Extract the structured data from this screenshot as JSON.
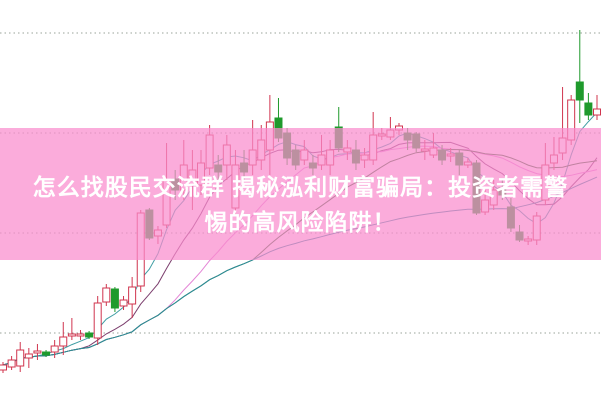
{
  "headline": {
    "line1": "怎么找股民交流群 揭秘泓利财富骗局：投资者需警",
    "line2": "惕的高风险陷阱！"
  },
  "chart_data": {
    "type": "candlestick",
    "title": "",
    "xlabel": "",
    "ylabel": "",
    "ylim": [
      0,
      40
    ],
    "grid": "horizontal dotted",
    "up_color": "#d0344e",
    "down_color": "#1f9a2c",
    "ma_colors": [
      "#3f9ea4",
      "#7c3f6e",
      "#e486d6",
      "#2f6a2f",
      "#2b8d9c"
    ],
    "ma_periods": [
      5,
      10,
      20,
      30,
      60
    ],
    "ohlc": [
      [
        3.0,
        3.8,
        2.7,
        3.5
      ],
      [
        3.3,
        4.4,
        3.0,
        4.0
      ],
      [
        3.4,
        5.8,
        2.8,
        5.0
      ],
      [
        4.2,
        5.2,
        3.2,
        4.6
      ],
      [
        4.7,
        5.6,
        4.0,
        4.9
      ],
      [
        4.8,
        5.0,
        4.3,
        4.5
      ],
      [
        4.8,
        6.0,
        4.2,
        5.4
      ],
      [
        5.4,
        7.8,
        4.5,
        6.3
      ],
      [
        6.4,
        8.2,
        6.0,
        6.6
      ],
      [
        6.4,
        7.0,
        6.0,
        6.6
      ],
      [
        6.7,
        6.9,
        6.1,
        6.3
      ],
      [
        6.2,
        10.4,
        5.5,
        9.7
      ],
      [
        9.8,
        11.6,
        9.4,
        11.2
      ],
      [
        11.1,
        11.3,
        8.8,
        9.2
      ],
      [
        9.4,
        10.4,
        9.0,
        10.0
      ],
      [
        9.6,
        12.3,
        8.2,
        11.3
      ],
      [
        11.4,
        19.0,
        10.8,
        18.7
      ],
      [
        19.0,
        19.2,
        16.0,
        16.2
      ],
      [
        16.4,
        17.4,
        15.6,
        17.0
      ],
      [
        17.5,
        25.7,
        17.2,
        22.0
      ],
      [
        22.1,
        23.0,
        20.0,
        21.0
      ],
      [
        21.0,
        26.0,
        20.0,
        23.5
      ],
      [
        21.5,
        25.0,
        19.0,
        23.0
      ],
      [
        21.5,
        25.0,
        20.5,
        23.7
      ],
      [
        23.2,
        27.5,
        22.5,
        26.5
      ],
      [
        23.5,
        24.5,
        22.0,
        22.8
      ],
      [
        23.5,
        26.5,
        22.0,
        25.5
      ],
      [
        19.2,
        25.0,
        18.5,
        23.5
      ],
      [
        23.7,
        25.0,
        22.0,
        22.8
      ],
      [
        23.5,
        28.0,
        22.5,
        25.0
      ],
      [
        24.0,
        27.5,
        23.0,
        26.0
      ],
      [
        25.0,
        30.5,
        22.5,
        27.8
      ],
      [
        28.2,
        30.2,
        25.8,
        26.2
      ],
      [
        26.7,
        27.2,
        23.5,
        24.2
      ],
      [
        25.0,
        25.5,
        23.0,
        23.5
      ],
      [
        24.0,
        26.0,
        23.5,
        25.0
      ],
      [
        23.7,
        24.5,
        22.5,
        23.2
      ],
      [
        23.5,
        26.5,
        23.0,
        24.5
      ],
      [
        23.5,
        26.0,
        22.5,
        25.0
      ],
      [
        27.3,
        29.3,
        24.8,
        25.2
      ],
      [
        24.8,
        26.0,
        24.0,
        25.2
      ],
      [
        25.0,
        26.0,
        23.0,
        23.7
      ],
      [
        24.0,
        25.2,
        23.2,
        24.5
      ],
      [
        24.0,
        28.8,
        23.5,
        26.5
      ],
      [
        26.4,
        27.2,
        26.0,
        26.6
      ],
      [
        26.3,
        28.3,
        26.0,
        27.0
      ],
      [
        27.0,
        27.7,
        26.5,
        27.4
      ],
      [
        26.7,
        27.2,
        25.0,
        26.0
      ],
      [
        26.6,
        26.8,
        24.8,
        25.2
      ],
      [
        24.9,
        26.0,
        24.0,
        25.1
      ],
      [
        24.5,
        26.7,
        24.2,
        25.2
      ],
      [
        25.0,
        25.5,
        23.5,
        24.0
      ],
      [
        24.4,
        25.2,
        23.8,
        24.6
      ],
      [
        24.7,
        25.0,
        22.5,
        23.5
      ],
      [
        23.5,
        24.2,
        23.2,
        23.8
      ],
      [
        23.7,
        24.0,
        18.5,
        18.7
      ],
      [
        18.8,
        21.0,
        18.5,
        20.0
      ],
      [
        19.5,
        22.0,
        19.0,
        21.0
      ],
      [
        21.2,
        22.0,
        20.0,
        20.5
      ],
      [
        19.3,
        20.2,
        16.8,
        17.2
      ],
      [
        16.8,
        17.5,
        15.8,
        16.0
      ],
      [
        15.9,
        16.4,
        15.5,
        16.1
      ],
      [
        16.0,
        18.8,
        15.5,
        18.4
      ],
      [
        20.0,
        25.7,
        19.5,
        23.5
      ],
      [
        23.7,
        26.3,
        23.0,
        24.5
      ],
      [
        24.7,
        31.3,
        24.0,
        26.2
      ],
      [
        26.0,
        30.5,
        25.5,
        30.0
      ],
      [
        31.8,
        37.0,
        27.7,
        30.0
      ],
      [
        29.7,
        30.7,
        28.0,
        28.5
      ],
      [
        28.5,
        30.5,
        28.0,
        29.1
      ]
    ]
  }
}
